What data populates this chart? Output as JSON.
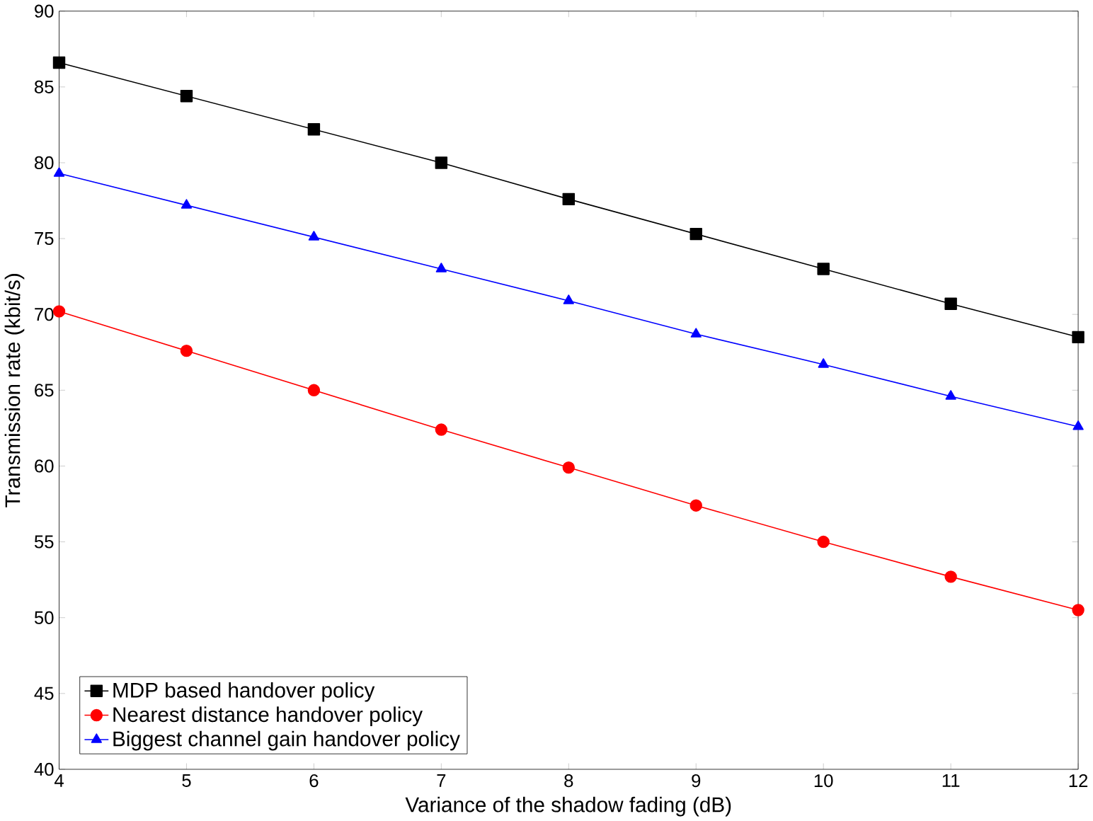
{
  "chart_data": {
    "type": "line",
    "xlabel": "Variance of the shadow fading (dB)",
    "ylabel": "Transmission rate (kbit/s)",
    "x": [
      4,
      5,
      6,
      7,
      8,
      9,
      10,
      11,
      12
    ],
    "xlim": [
      4,
      12
    ],
    "xticks": [
      4,
      5,
      6,
      7,
      8,
      9,
      10,
      11,
      12
    ],
    "ylim": [
      40,
      90
    ],
    "yticks": [
      40,
      45,
      50,
      55,
      60,
      65,
      70,
      75,
      80,
      85,
      90
    ],
    "grid": false,
    "legend": "bottom left",
    "series": [
      {
        "name": "MDP based handover policy",
        "color": "#000000",
        "marker": "square",
        "values": [
          86.6,
          84.4,
          82.2,
          80.0,
          77.6,
          75.3,
          73.0,
          70.7,
          68.5
        ]
      },
      {
        "name": "Nearest distance handover policy",
        "color": "#ff0000",
        "marker": "circle",
        "values": [
          70.2,
          67.6,
          65.0,
          62.4,
          59.9,
          57.4,
          55.0,
          52.7,
          50.5
        ]
      },
      {
        "name": "Biggest channel gain handover policy",
        "color": "#0000ff",
        "marker": "triangle",
        "values": [
          79.3,
          77.2,
          75.1,
          73.0,
          70.9,
          68.7,
          66.7,
          64.6,
          62.6
        ]
      }
    ]
  }
}
